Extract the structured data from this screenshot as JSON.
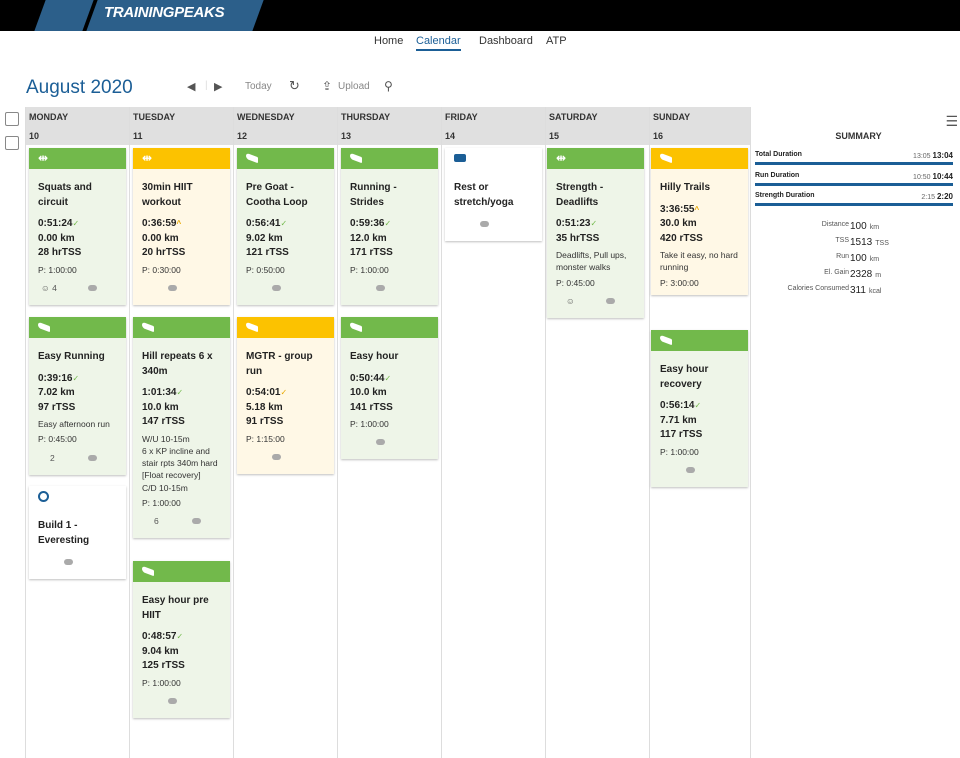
{
  "app": {
    "logo": "TRAININGPEAKS"
  },
  "nav": {
    "items": [
      "Home",
      "Calendar",
      "Dashboard",
      "ATP"
    ],
    "active": "Calendar"
  },
  "calendar": {
    "month": "August",
    "year": "2020",
    "today_label": "Today",
    "upload_label": "Upload"
  },
  "days": [
    {
      "name": "MONDAY",
      "num": "10"
    },
    {
      "name": "TUESDAY",
      "num": "11"
    },
    {
      "name": "WEDNESDAY",
      "num": "12"
    },
    {
      "name": "THURSDAY",
      "num": "13"
    },
    {
      "name": "FRIDAY",
      "num": "14"
    },
    {
      "name": "SATURDAY",
      "num": "15"
    },
    {
      "name": "SUNDAY",
      "num": "16"
    }
  ],
  "workouts": {
    "mon1": {
      "title": "Squats and circuit",
      "duration": "0:51:24",
      "distance": "0.00 km",
      "tss": "28 hrTSS",
      "plan": "P: 1:00:00",
      "foot": "4"
    },
    "mon2": {
      "title": "Easy Running",
      "duration": "0:39:16",
      "distance": "7.02 km",
      "tss": "97 rTSS",
      "note": "Easy afternoon run",
      "plan": "P: 0:45:00",
      "foot": "2"
    },
    "mon3": {
      "title": "Build 1 - Everesting"
    },
    "tue1": {
      "title": "30min HIIT workout",
      "duration": "0:36:59",
      "distance": "0.00 km",
      "tss": "20 hrTSS",
      "plan": "P: 0:30:00"
    },
    "tue2": {
      "title": "Hill repeats 6 x 340m",
      "duration": "1:01:34",
      "distance": "10.0 km",
      "tss": "147 rTSS",
      "note": "W/U 10-15m\n6 x KP incline and stair rpts 340m hard\n[Float recovery]\nC/D 10-15m",
      "plan": "P: 1:00:00",
      "foot": "6"
    },
    "tue3": {
      "title": "Easy hour pre HIIT",
      "duration": "0:48:57",
      "distance": "9.04 km",
      "tss": "125 rTSS",
      "plan": "P: 1:00:00"
    },
    "wed1": {
      "title": "Pre Goat - Cootha Loop",
      "duration": "0:56:41",
      "distance": "9.02 km",
      "tss": "121 rTSS",
      "plan": "P: 0:50:00"
    },
    "wed2": {
      "title": "MGTR - group run",
      "duration": "0:54:01",
      "distance": "5.18 km",
      "tss": "91 rTSS",
      "plan": "P: 1:15:00"
    },
    "thu1": {
      "title": "Running - Strides",
      "duration": "0:59:36",
      "distance": "12.0 km",
      "tss": "171 rTSS",
      "plan": "P: 1:00:00"
    },
    "thu2": {
      "title": "Easy hour",
      "duration": "0:50:44",
      "distance": "10.0 km",
      "tss": "141 rTSS",
      "plan": "P: 1:00:00"
    },
    "fri1": {
      "title": "Rest or stretch/yoga"
    },
    "sat1": {
      "title": "Strength - Deadlifts",
      "duration": "0:51:23",
      "tss": "35 hrTSS",
      "note": "Deadlifts, Pull ups, monster walks",
      "plan": "P: 0:45:00"
    },
    "sun1": {
      "title": "Hilly Trails",
      "duration": "3:36:55",
      "distance": "30.0 km",
      "tss": "420 rTSS",
      "note": "Take it easy, no hard running",
      "plan": "P: 3:00:00"
    },
    "sun2": {
      "title": "Easy hour recovery",
      "duration": "0:56:14",
      "distance": "7.71 km",
      "tss": "117 rTSS",
      "plan": "P: 1:00:00"
    }
  },
  "summary": {
    "title": "SUMMARY",
    "rows": [
      {
        "label": "Total Duration",
        "planned": "13:05",
        "actual": "13:04",
        "progress": 1.0
      },
      {
        "label": "Run Duration",
        "planned": "10:50",
        "actual": "10:44",
        "progress": 1.0
      },
      {
        "label": "Strength Duration",
        "planned": "2:15",
        "actual": "2:20",
        "progress": 1.0
      }
    ],
    "metrics": [
      {
        "label": "Distance",
        "value": "100",
        "unit": "km"
      },
      {
        "label": "TSS",
        "value": "1513",
        "unit": "TSS"
      },
      {
        "label": "Run",
        "value": "100",
        "unit": "km"
      },
      {
        "label": "El. Gain",
        "value": "2328",
        "unit": "m"
      },
      {
        "label": "Calories Consumed",
        "value": "311",
        "unit": "kcal"
      }
    ]
  }
}
